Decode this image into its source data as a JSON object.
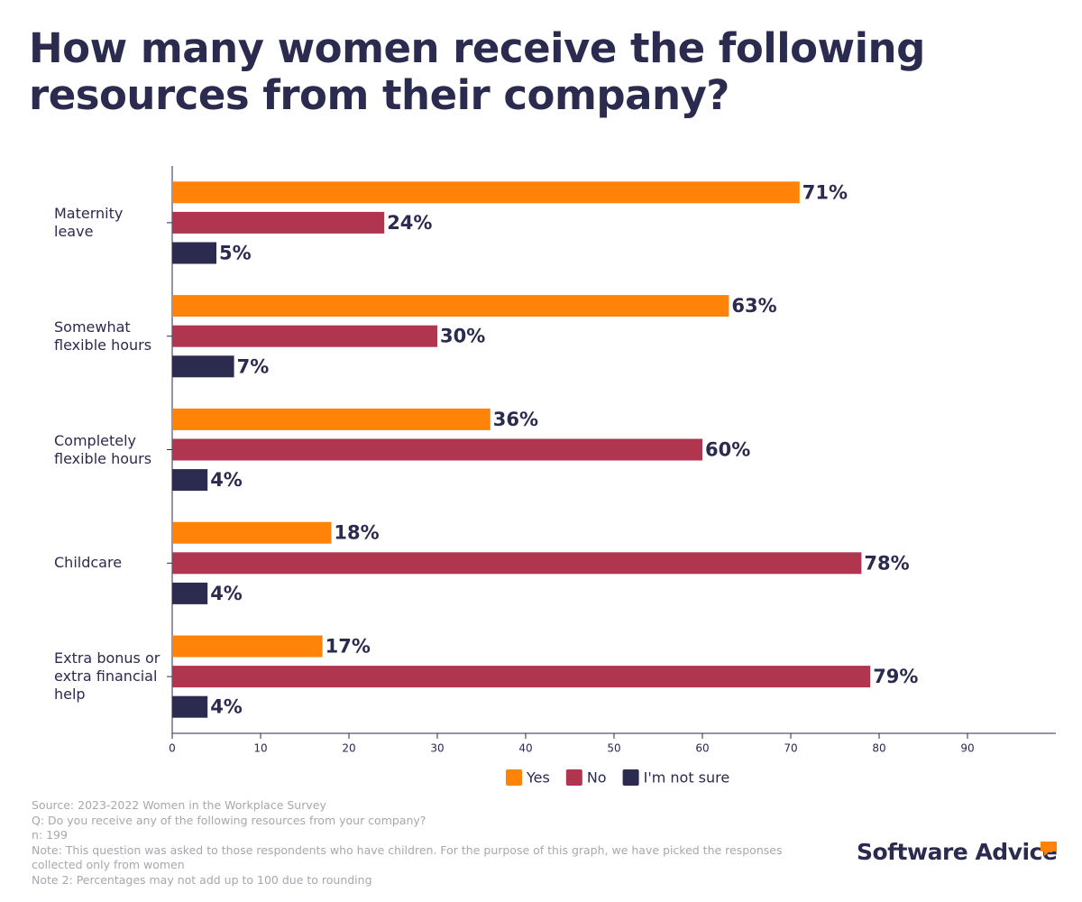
{
  "chart_data": {
    "type": "bar",
    "orientation": "horizontal",
    "title": "How many women receive the following resources from their company?",
    "categories": [
      "Maternity leave",
      "Somewhat flexible hours",
      "Completely flexible hours",
      "Childcare",
      "Extra bonus or extra financial help"
    ],
    "series": [
      {
        "name": "Yes",
        "color": "#ff8308",
        "values": [
          71,
          63,
          36,
          18,
          17
        ],
        "value_labels": [
          "71%",
          "63%",
          "36%",
          "18%",
          "17%"
        ]
      },
      {
        "name": "No",
        "color": "#b0354f",
        "values": [
          24,
          30,
          60,
          78,
          79
        ],
        "value_labels": [
          "24%",
          "30%",
          "60%",
          "78%",
          "79%"
        ]
      },
      {
        "name": "I'm not sure",
        "color": "#2b2a4f",
        "values": [
          5,
          7,
          4,
          4,
          4
        ],
        "value_labels": [
          "5%",
          "7%",
          "4%",
          "4%",
          "4%"
        ]
      }
    ],
    "xlim": [
      0,
      100
    ],
    "xticks": [
      0,
      10,
      20,
      30,
      40,
      50,
      60,
      70,
      80,
      90
    ],
    "legend": "bottom",
    "footnotes": [
      "Source: 2023-2022 Women in the Workplace Survey",
      "Q: Do you receive any of the following resources from your company?",
      "n: 199",
      "Note: This question was asked to those respondents who have children. For the purpose of this graph, we have picked the responses collected only from women",
      "Note 2: Percentages may not add up to 100 due to rounding"
    ],
    "logo": "Software Advice"
  }
}
